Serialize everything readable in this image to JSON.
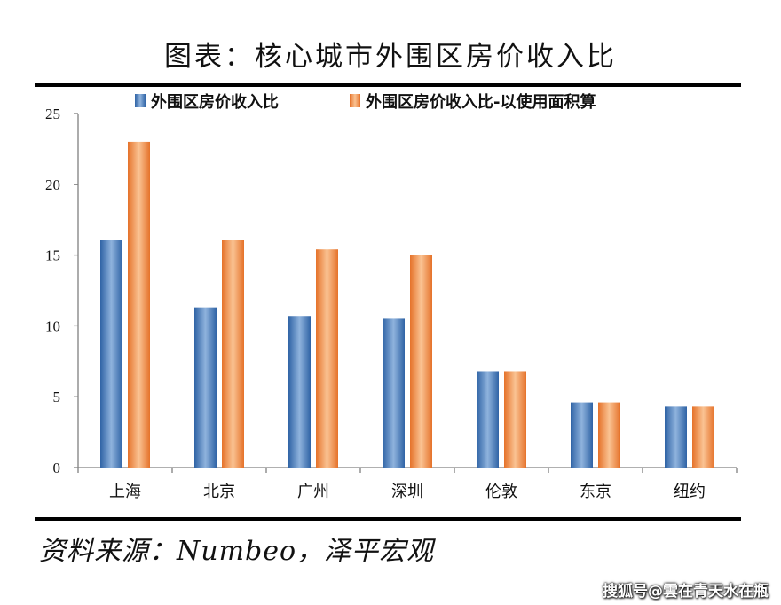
{
  "title": "图表：核心城市外围区房价收入比",
  "source": "资料来源：Numbeo，泽平宏观",
  "watermark": "搜狐号@雲在青天水在瓶",
  "colors": {
    "series1": "#3a74b8",
    "series2": "#ee8030"
  },
  "chart_data": {
    "type": "bar",
    "categories": [
      "上海",
      "北京",
      "广州",
      "深圳",
      "伦敦",
      "东京",
      "纽约"
    ],
    "series": [
      {
        "name": "外围区房价收入比",
        "values": [
          16.1,
          11.3,
          10.7,
          10.5,
          6.8,
          4.6,
          4.3
        ]
      },
      {
        "name": "外围区房价收入比-以使用面积算",
        "values": [
          23.0,
          16.1,
          15.4,
          15.0,
          6.8,
          4.6,
          4.3
        ]
      }
    ],
    "ylim": [
      0,
      25
    ],
    "yticks": [
      "0",
      "5",
      "10",
      "15",
      "20",
      "25"
    ],
    "legend": "top",
    "grid": false
  }
}
